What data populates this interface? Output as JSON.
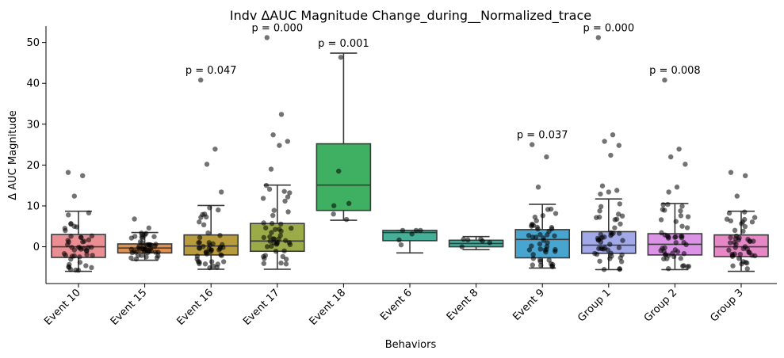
{
  "chart_data": {
    "type": "box",
    "title": "Indv ΔAUC Magnitude Change_during__Normalized_trace",
    "xlabel": "Behaviors",
    "ylabel": "Δ AUC Magnitude",
    "ylim": [
      -9,
      54
    ],
    "yticks": [
      0,
      10,
      20,
      30,
      40,
      50
    ],
    "grid": false,
    "categories": [
      "Event 10",
      "Event 15",
      "Event 16",
      "Event 17",
      "Event 18",
      "Event 6",
      "Event 8",
      "Event 9",
      "Group 1",
      "Group 2",
      "Group 3"
    ],
    "colors": [
      "#ea8e93",
      "#e0904e",
      "#b79b3c",
      "#9aab47",
      "#3fb061",
      "#45b097",
      "#47ad9c",
      "#48a5cf",
      "#a1a9e9",
      "#da93e5",
      "#e688c6"
    ],
    "boxes": [
      {
        "category": "Event 10",
        "whislo": -6.0,
        "q1": -2.6,
        "med": 0.0,
        "q3": 3.0,
        "whishi": 8.7
      },
      {
        "category": "Event 15",
        "whislo": -3.3,
        "q1": -1.5,
        "med": -0.3,
        "q3": 0.7,
        "whishi": 3.5
      },
      {
        "category": "Event 16",
        "whislo": -5.5,
        "q1": -2.0,
        "med": 0.2,
        "q3": 2.9,
        "whishi": 10.1
      },
      {
        "category": "Event 17",
        "whislo": -5.5,
        "q1": -1.1,
        "med": 1.4,
        "q3": 5.7,
        "whishi": 15.1
      },
      {
        "category": "Event 18",
        "whislo": 6.5,
        "q1": 8.9,
        "med": 15.1,
        "q3": 25.2,
        "whishi": 47.4
      },
      {
        "category": "Event 6",
        "whislo": -1.5,
        "q1": 1.5,
        "med": 3.5,
        "q3": 4.0,
        "whishi": 4.0
      },
      {
        "category": "Event 8",
        "whislo": -0.7,
        "q1": 0.0,
        "med": 0.8,
        "q3": 1.6,
        "whishi": 2.5
      },
      {
        "category": "Event 9",
        "whislo": -5.2,
        "q1": -2.7,
        "med": 1.8,
        "q3": 4.2,
        "whishi": 10.4
      },
      {
        "category": "Group 1",
        "whislo": -5.6,
        "q1": -1.6,
        "med": 0.4,
        "q3": 3.7,
        "whishi": 11.7
      },
      {
        "category": "Group 2",
        "whislo": -5.6,
        "q1": -2.0,
        "med": 0.6,
        "q3": 3.2,
        "whishi": 10.6
      },
      {
        "category": "Group 3",
        "whislo": -6.0,
        "q1": -2.4,
        "med": 0.0,
        "q3": 2.9,
        "whishi": 8.7
      }
    ],
    "outliers": [
      {
        "category": "Event 10",
        "values": [
          18.2,
          17.4,
          12.4
        ]
      },
      {
        "category": "Event 15",
        "values": [
          6.8,
          4.6
        ]
      },
      {
        "category": "Event 16",
        "values": [
          40.8,
          23.9,
          20.2,
          13.4
        ]
      },
      {
        "category": "Event 17",
        "values": [
          51.2,
          32.4,
          27.4,
          25.8,
          24.8,
          19.0
        ]
      },
      {
        "category": "Event 9",
        "values": [
          25.0,
          22.0,
          14.6
        ]
      },
      {
        "category": "Group 1",
        "values": [
          51.2,
          27.4,
          25.8,
          24.8,
          22.4,
          14.9,
          13.8,
          13.4,
          12.9
        ]
      },
      {
        "category": "Group 2",
        "values": [
          40.8,
          23.9,
          22.0,
          20.2,
          14.6,
          13.4
        ]
      },
      {
        "category": "Group 3",
        "values": [
          18.2,
          17.4,
          12.4
        ]
      }
    ],
    "annotations": [
      {
        "category": "Event 16",
        "text": "p = 0.047"
      },
      {
        "category": "Event 17",
        "text": "p = 0.000"
      },
      {
        "category": "Event 18",
        "text": "p = 0.001"
      },
      {
        "category": "Event 9",
        "text": "p = 0.037"
      },
      {
        "category": "Group 1",
        "text": "p = 0.000"
      },
      {
        "category": "Group 2",
        "text": "p = 0.008"
      }
    ]
  }
}
